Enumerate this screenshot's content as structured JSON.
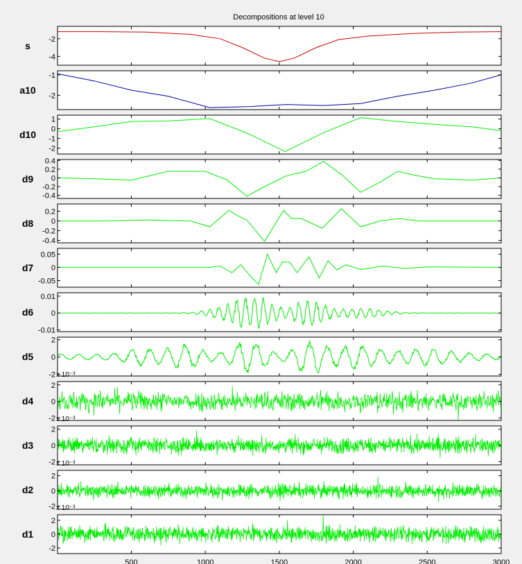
{
  "title": "Decompositions at level 10",
  "colors": {
    "signal": "#cc0000",
    "approx": "#000099",
    "detail": "#00ee00",
    "background": "#f0f0f0"
  },
  "chart_data": {
    "type": "line",
    "title": "Decompositions at level 10",
    "x_range": [
      1,
      3000
    ],
    "x_ticks": [
      500,
      1000,
      1500,
      2000,
      2500,
      3000
    ],
    "x_tick_labels": [
      "500",
      "1000",
      "1500",
      "2000",
      "2500",
      "3000"
    ],
    "panels": [
      {
        "label": "s",
        "color": "#cc0000",
        "ylim": [
          -5,
          -0.6
        ],
        "yticks": [
          -2,
          -4
        ],
        "ytick_labels": [
          "-2",
          "-4"
        ],
        "exponent": "",
        "mode": "smooth",
        "points": [
          [
            1,
            -1.2
          ],
          [
            300,
            -1.2
          ],
          [
            600,
            -1.25
          ],
          [
            900,
            -1.5
          ],
          [
            1100,
            -2
          ],
          [
            1250,
            -3
          ],
          [
            1400,
            -4.2
          ],
          [
            1500,
            -4.6
          ],
          [
            1600,
            -4.2
          ],
          [
            1750,
            -3
          ],
          [
            1900,
            -2.1
          ],
          [
            2100,
            -1.7
          ],
          [
            2400,
            -1.4
          ],
          [
            2700,
            -1.25
          ],
          [
            3000,
            -1.2
          ]
        ]
      },
      {
        "label": "a10",
        "color": "#000099",
        "ylim": [
          -2.7,
          -0.8
        ],
        "yticks": [
          -1,
          -2
        ],
        "ytick_labels": [
          "-1",
          "-2"
        ],
        "exponent": "",
        "mode": "poly",
        "points": [
          [
            1,
            -0.95
          ],
          [
            250,
            -1.3
          ],
          [
            500,
            -1.75
          ],
          [
            750,
            -2.05
          ],
          [
            1030,
            -2.6
          ],
          [
            1300,
            -2.55
          ],
          [
            1550,
            -2.45
          ],
          [
            1800,
            -2.5
          ],
          [
            2050,
            -2.4
          ],
          [
            2300,
            -2.05
          ],
          [
            2550,
            -1.75
          ],
          [
            2800,
            -1.4
          ],
          [
            3000,
            -1.0
          ]
        ]
      },
      {
        "label": "d10",
        "color": "#00ee00",
        "ylim": [
          -2.6,
          1.4
        ],
        "yticks": [
          1,
          0,
          -1,
          -2
        ],
        "ytick_labels": [
          "1",
          "0",
          "-1",
          "-2"
        ],
        "exponent": "",
        "mode": "poly",
        "points": [
          [
            1,
            -0.3
          ],
          [
            250,
            0.2
          ],
          [
            500,
            0.75
          ],
          [
            750,
            0.8
          ],
          [
            1030,
            1.05
          ],
          [
            1290,
            -0.5
          ],
          [
            1540,
            -2.35
          ],
          [
            1800,
            -0.4
          ],
          [
            2050,
            1.15
          ],
          [
            2300,
            0.75
          ],
          [
            2550,
            0.45
          ],
          [
            2800,
            0.2
          ],
          [
            3000,
            -0.2
          ]
        ]
      },
      {
        "label": "d9",
        "color": "#00ee00",
        "ylim": [
          -0.47,
          0.42
        ],
        "yticks": [
          0.4,
          0.2,
          0,
          -0.2,
          -0.4
        ],
        "ytick_labels": [
          "0.4",
          "0.2",
          "0",
          "-0.2",
          "-0.4"
        ],
        "exponent": "",
        "mode": "poly",
        "points": [
          [
            1,
            0
          ],
          [
            250,
            -0.02
          ],
          [
            500,
            -0.05
          ],
          [
            750,
            0.15
          ],
          [
            1000,
            0.15
          ],
          [
            1150,
            -0.05
          ],
          [
            1280,
            -0.42
          ],
          [
            1400,
            -0.2
          ],
          [
            1550,
            0.05
          ],
          [
            1680,
            0.15
          ],
          [
            1800,
            0.38
          ],
          [
            1930,
            0.05
          ],
          [
            2050,
            -0.33
          ],
          [
            2180,
            -0.1
          ],
          [
            2300,
            0.15
          ],
          [
            2430,
            0.05
          ],
          [
            2550,
            -0.02
          ],
          [
            2800,
            -0.05
          ],
          [
            3000,
            0
          ]
        ]
      },
      {
        "label": "d8",
        "color": "#00ee00",
        "ylim": [
          -0.45,
          0.35
        ],
        "yticks": [
          0.2,
          0,
          -0.2,
          -0.4
        ],
        "ytick_labels": [
          "0.2",
          "0",
          "-0.2",
          "-0.4"
        ],
        "exponent": "",
        "mode": "poly",
        "points": [
          [
            1,
            0
          ],
          [
            300,
            0
          ],
          [
            600,
            0.02
          ],
          [
            900,
            0
          ],
          [
            1030,
            -0.12
          ],
          [
            1160,
            0.22
          ],
          [
            1210,
            0.12
          ],
          [
            1280,
            0.02
          ],
          [
            1400,
            -0.42
          ],
          [
            1530,
            0.22
          ],
          [
            1580,
            0.05
          ],
          [
            1650,
            0.05
          ],
          [
            1790,
            -0.15
          ],
          [
            1920,
            0.25
          ],
          [
            2050,
            -0.12
          ],
          [
            2180,
            0
          ],
          [
            2310,
            0.05
          ],
          [
            2440,
            0
          ],
          [
            2700,
            0
          ],
          [
            3000,
            0
          ]
        ]
      },
      {
        "label": "d7",
        "color": "#00ee00",
        "ylim": [
          -0.075,
          0.072
        ],
        "yticks": [
          0.05,
          0,
          -0.05
        ],
        "ytick_labels": [
          "0.05",
          "0",
          "-0.05"
        ],
        "exponent": "",
        "mode": "poly",
        "points": [
          [
            1,
            0
          ],
          [
            900,
            0
          ],
          [
            1030,
            0
          ],
          [
            1100,
            0.005
          ],
          [
            1180,
            -0.02
          ],
          [
            1240,
            0.01
          ],
          [
            1300,
            -0.03
          ],
          [
            1360,
            -0.065
          ],
          [
            1420,
            0.05
          ],
          [
            1480,
            -0.02
          ],
          [
            1520,
            0.02
          ],
          [
            1570,
            0.02
          ],
          [
            1620,
            -0.02
          ],
          [
            1700,
            0.04
          ],
          [
            1770,
            -0.04
          ],
          [
            1830,
            0.025
          ],
          [
            1890,
            -0.01
          ],
          [
            1950,
            0.01
          ],
          [
            2050,
            -0.008
          ],
          [
            2200,
            0.005
          ],
          [
            2350,
            -0.004
          ],
          [
            2500,
            0.002
          ],
          [
            3000,
            0
          ]
        ]
      },
      {
        "label": "d6",
        "color": "#00ee00",
        "ylim": [
          -0.011,
          0.012
        ],
        "yticks": [
          0.01,
          0,
          -0.01
        ],
        "ytick_labels": [
          "0.01",
          "0",
          "-0.01"
        ],
        "exponent": "",
        "mode": "osc",
        "amp": 0.0095,
        "freq": 60,
        "seed": 6,
        "bursts": [
          [
            1350,
            150,
            1.0
          ],
          [
            1700,
            130,
            0.9
          ],
          [
            1160,
            170,
            0.45
          ],
          [
            2050,
            200,
            0.35
          ]
        ],
        "base": 0.01
      },
      {
        "label": "d5",
        "color": "#00ee00",
        "ylim": [
          -2.2,
          2.3
        ],
        "yticks": [
          2,
          0,
          -2
        ],
        "ytick_labels": [
          "2",
          "0",
          "-2"
        ],
        "exponent": "x 10⁻³",
        "mode": "osc",
        "amp": 2.0,
        "freq": 120,
        "seed": 5,
        "bursts": [
          [
            1300,
            120,
            1.0
          ],
          [
            1700,
            110,
            0.9
          ],
          [
            850,
            150,
            0.6
          ],
          [
            2000,
            200,
            0.55
          ],
          [
            550,
            120,
            0.35
          ],
          [
            2500,
            250,
            0.35
          ]
        ],
        "base": 0.18
      },
      {
        "label": "d4",
        "color": "#00ee00",
        "ylim": [
          -2.3,
          2.4
        ],
        "yticks": [
          2,
          0,
          -2
        ],
        "ytick_labels": [
          "2",
          "0",
          "-2"
        ],
        "exponent": "x 10⁻³",
        "mode": "noise",
        "amp": 0.85,
        "seed": 4,
        "step": 3
      },
      {
        "label": "d3",
        "color": "#00ee00",
        "ylim": [
          -2.4,
          2.4
        ],
        "yticks": [
          2,
          0,
          -2
        ],
        "ytick_labels": [
          "2",
          "0",
          "-2"
        ],
        "exponent": "x 10⁻³",
        "mode": "noise",
        "amp": 0.7,
        "seed": 3,
        "step": 2
      },
      {
        "label": "d2",
        "color": "#00ee00",
        "ylim": [
          -2.4,
          2.7
        ],
        "yticks": [
          2,
          0,
          -2
        ],
        "ytick_labels": [
          "2",
          "0",
          "-2"
        ],
        "exponent": "x 10⁻³",
        "mode": "noise",
        "amp": 0.65,
        "seed": 2,
        "step": 2
      },
      {
        "label": "d1",
        "color": "#00ee00",
        "ylim": [
          -2.8,
          2.8
        ],
        "yticks": [
          2,
          0,
          -2
        ],
        "ytick_labels": [
          "2",
          "0",
          "-2"
        ],
        "exponent": "",
        "mode": "noise",
        "amp": 0.8,
        "seed": 1,
        "step": 2
      }
    ]
  }
}
